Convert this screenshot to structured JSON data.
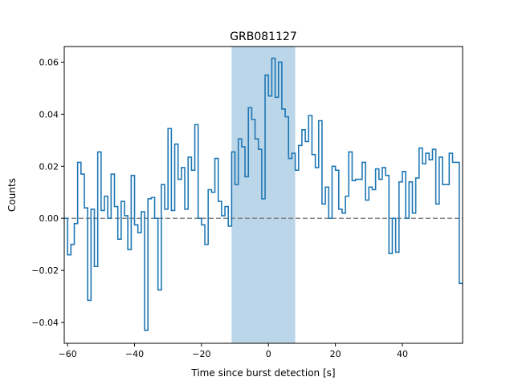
{
  "chart_data": {
    "type": "line",
    "style": "step",
    "title": "GRB081127",
    "xlabel": "Time since burst detection [s]",
    "ylabel": "Counts",
    "xlim": [
      -61,
      58
    ],
    "ylim": [
      -0.048,
      0.066
    ],
    "x_ticks": [
      -60,
      -40,
      -20,
      0,
      20,
      40
    ],
    "x_tick_labels": [
      "−60",
      "−40",
      "−20",
      "0",
      "20",
      "40"
    ],
    "y_ticks": [
      -0.04,
      -0.02,
      0.0,
      0.02,
      0.04,
      0.06
    ],
    "y_tick_labels": [
      "−0.04",
      "−0.02",
      "0.00",
      "0.02",
      "0.04",
      "0.06"
    ],
    "grid": false,
    "line_color": "#1f77b4",
    "highlight_region": {
      "x": [
        -11,
        8
      ],
      "color": "#1f77b4",
      "alpha": 0.3
    },
    "baseline": {
      "y": 0.0,
      "style": "dashed",
      "color": "#808080"
    },
    "bin_width": 1,
    "bin_start": -61,
    "values": [
      0.0,
      -0.014,
      -0.01,
      -0.002,
      0.0215,
      0.017,
      0.004,
      -0.0315,
      0.0035,
      -0.0185,
      0.0255,
      0.003,
      0.0085,
      0.0,
      0.017,
      0.0045,
      -0.008,
      0.0065,
      0.001,
      -0.012,
      0.0165,
      -0.0025,
      -0.0055,
      0.0025,
      -0.043,
      0.0075,
      0.008,
      0.0,
      -0.0275,
      0.013,
      0.0035,
      0.0345,
      0.003,
      0.0285,
      0.015,
      0.0195,
      0.0035,
      0.0235,
      0.0185,
      0.036,
      0.0,
      -0.0025,
      -0.01,
      0.011,
      0.01,
      0.023,
      0.0065,
      0.001,
      0.0045,
      -0.003,
      0.0255,
      0.013,
      0.0305,
      0.0275,
      0.016,
      0.0425,
      0.038,
      0.0305,
      0.0265,
      0.0075,
      0.055,
      0.047,
      0.0615,
      0.0465,
      0.06,
      0.042,
      0.039,
      0.023,
      0.025,
      0.0185,
      0.028,
      0.034,
      0.0295,
      0.0395,
      0.0245,
      0.0195,
      0.0375,
      0.0055,
      0.012,
      0.0,
      0.02,
      0.0185,
      0.0035,
      0.002,
      0.0085,
      0.0255,
      0.0145,
      0.015,
      0.015,
      0.0215,
      0.007,
      0.012,
      0.011,
      0.019,
      0.015,
      0.0195,
      0.0165,
      -0.0135,
      0.0,
      -0.013,
      0.014,
      0.018,
      0.0,
      0.014,
      0.002,
      0.0155,
      0.027,
      0.021,
      0.025,
      0.0225,
      0.0265,
      0.0055,
      0.0235,
      0.013,
      0.013,
      0.025,
      0.0215,
      0.0215,
      -0.025
    ]
  }
}
